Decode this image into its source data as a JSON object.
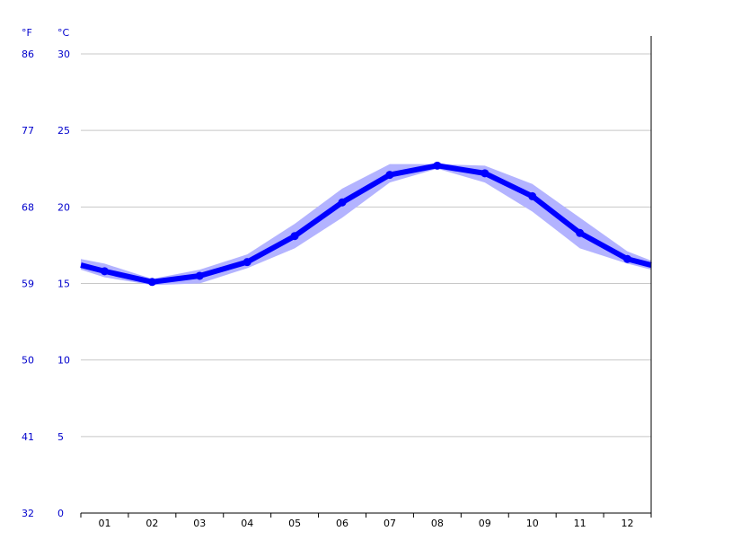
{
  "units": {
    "fahrenheit": "°F",
    "celsius": "°C"
  },
  "colors": {
    "line": "#0000ff",
    "band": "#b3b3ff",
    "grid": "#c8c8c8",
    "axis_label": "#0000cc",
    "month_label": "#000000"
  },
  "chart_data": {
    "type": "line",
    "categories": [
      "01",
      "02",
      "03",
      "04",
      "05",
      "06",
      "07",
      "08",
      "09",
      "10",
      "11",
      "12"
    ],
    "series": [
      {
        "values": [
          15.8,
          15.1,
          15.5,
          16.4,
          18.1,
          20.3,
          22.1,
          22.7,
          22.2,
          20.7,
          18.3,
          16.6
        ]
      }
    ],
    "range_band": {
      "low": [
        15.4,
        14.9,
        15.0,
        16.0,
        17.3,
        19.3,
        21.6,
        22.5,
        21.6,
        19.7,
        17.3,
        16.3
      ],
      "high": [
        16.3,
        15.3,
        15.9,
        16.9,
        18.9,
        21.2,
        22.8,
        22.8,
        22.7,
        21.5,
        19.3,
        17.1
      ]
    },
    "edge_values": {
      "start": 16.2,
      "end": 16.2
    },
    "edge_band": {
      "start": [
        15.9,
        16.6
      ],
      "end": [
        15.9,
        16.5
      ]
    },
    "ylim": [
      0,
      30
    ],
    "yticks_c": [
      "0",
      "5",
      "10",
      "15",
      "20",
      "25",
      "30"
    ],
    "yticks_f": [
      "32",
      "41",
      "50",
      "59",
      "68",
      "77",
      "86"
    ],
    "grid": true,
    "legend": "none"
  }
}
